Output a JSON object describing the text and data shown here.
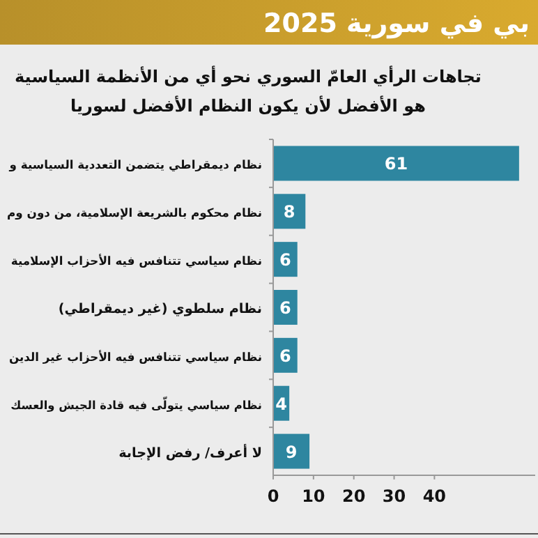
{
  "chart_data": {
    "type": "bar",
    "orientation": "horizontal",
    "title": "بي في سورية 2025",
    "subtitle": "تجاهات الرأي العامّ السوري نحو أي من الأنظمة السياسية\nهو الأفضل لأن يكون النظام الأفضل لسوريا",
    "categories": [
      "نظام ديمقراطي يتضمن التعددية السياسية و",
      "نظام محكوم بالشريعة الإسلامية، من دون وم",
      "نظام سياسي تتنافس فيه الأحزاب الإسلامية",
      "نظام سلطوي (غير ديمقراطي)",
      "نظام سياسي تتنافس فيه الأحزاب غير الدين",
      "نظام سياسي يتولّى فيه قادة الجيش والعسك",
      "لا أعرف/ رفض الإجابة"
    ],
    "values": [
      61,
      8,
      6,
      6,
      6,
      4,
      9
    ],
    "color": "#2e86a0",
    "data_labels": true,
    "xlim": [
      0,
      65
    ],
    "xticks": [
      0,
      10,
      20,
      30,
      40
    ]
  }
}
